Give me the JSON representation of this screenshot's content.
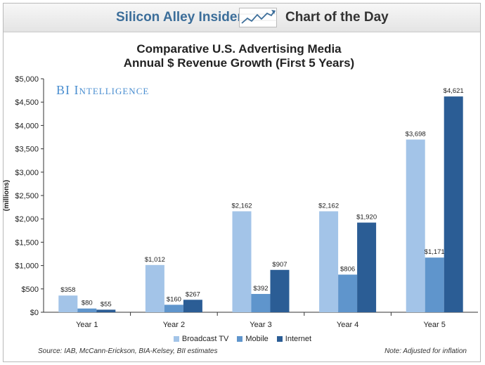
{
  "header": {
    "brand": "Silicon Alley Insider",
    "section": "Chart of the Day"
  },
  "watermark": "BI Intelligence",
  "footer": {
    "source": "Source:  IAB, McCann-Erickson, BIA-Kelsey, BII estimates",
    "note": "Note: Adjusted for inflation"
  },
  "colors": {
    "broadcast": "#a3c4e8",
    "mobile": "#5f95cc",
    "internet": "#2b5d95",
    "brand": "#3c6e9a"
  },
  "chart_data": {
    "type": "bar",
    "title": [
      "Comparative U.S. Advertising Media",
      "Annual $ Revenue Growth (First 5 Years)"
    ],
    "xlabel": "",
    "ylabel": "(millions)",
    "ylim": [
      0,
      5000
    ],
    "yticks": [
      0,
      500,
      1000,
      1500,
      2000,
      2500,
      3000,
      3500,
      4000,
      4500,
      5000
    ],
    "ytick_labels": [
      "$0",
      "$500",
      "$1,000",
      "$1,500",
      "$2,000",
      "$2,500",
      "$3,000",
      "$3,500",
      "$4,000",
      "$4,500",
      "$5,000"
    ],
    "grid": false,
    "legend_position": "bottom",
    "categories": [
      "Year 1",
      "Year 2",
      "Year 3",
      "Year 4",
      "Year 5"
    ],
    "series": [
      {
        "name": "Broadcast TV",
        "values": [
          358,
          1012,
          2162,
          2162,
          3698
        ],
        "labels": [
          "$358",
          "$1,012",
          "$2,162",
          "$2,162",
          "$3,698"
        ]
      },
      {
        "name": "Mobile",
        "values": [
          80,
          160,
          392,
          806,
          1171
        ],
        "labels": [
          "$80",
          "$160",
          "$392",
          "$806",
          "$1,171"
        ]
      },
      {
        "name": "Internet",
        "values": [
          55,
          267,
          907,
          1920,
          4621
        ],
        "labels": [
          "$55",
          "$267",
          "$907",
          "$1,920",
          "$4,621"
        ]
      }
    ]
  }
}
